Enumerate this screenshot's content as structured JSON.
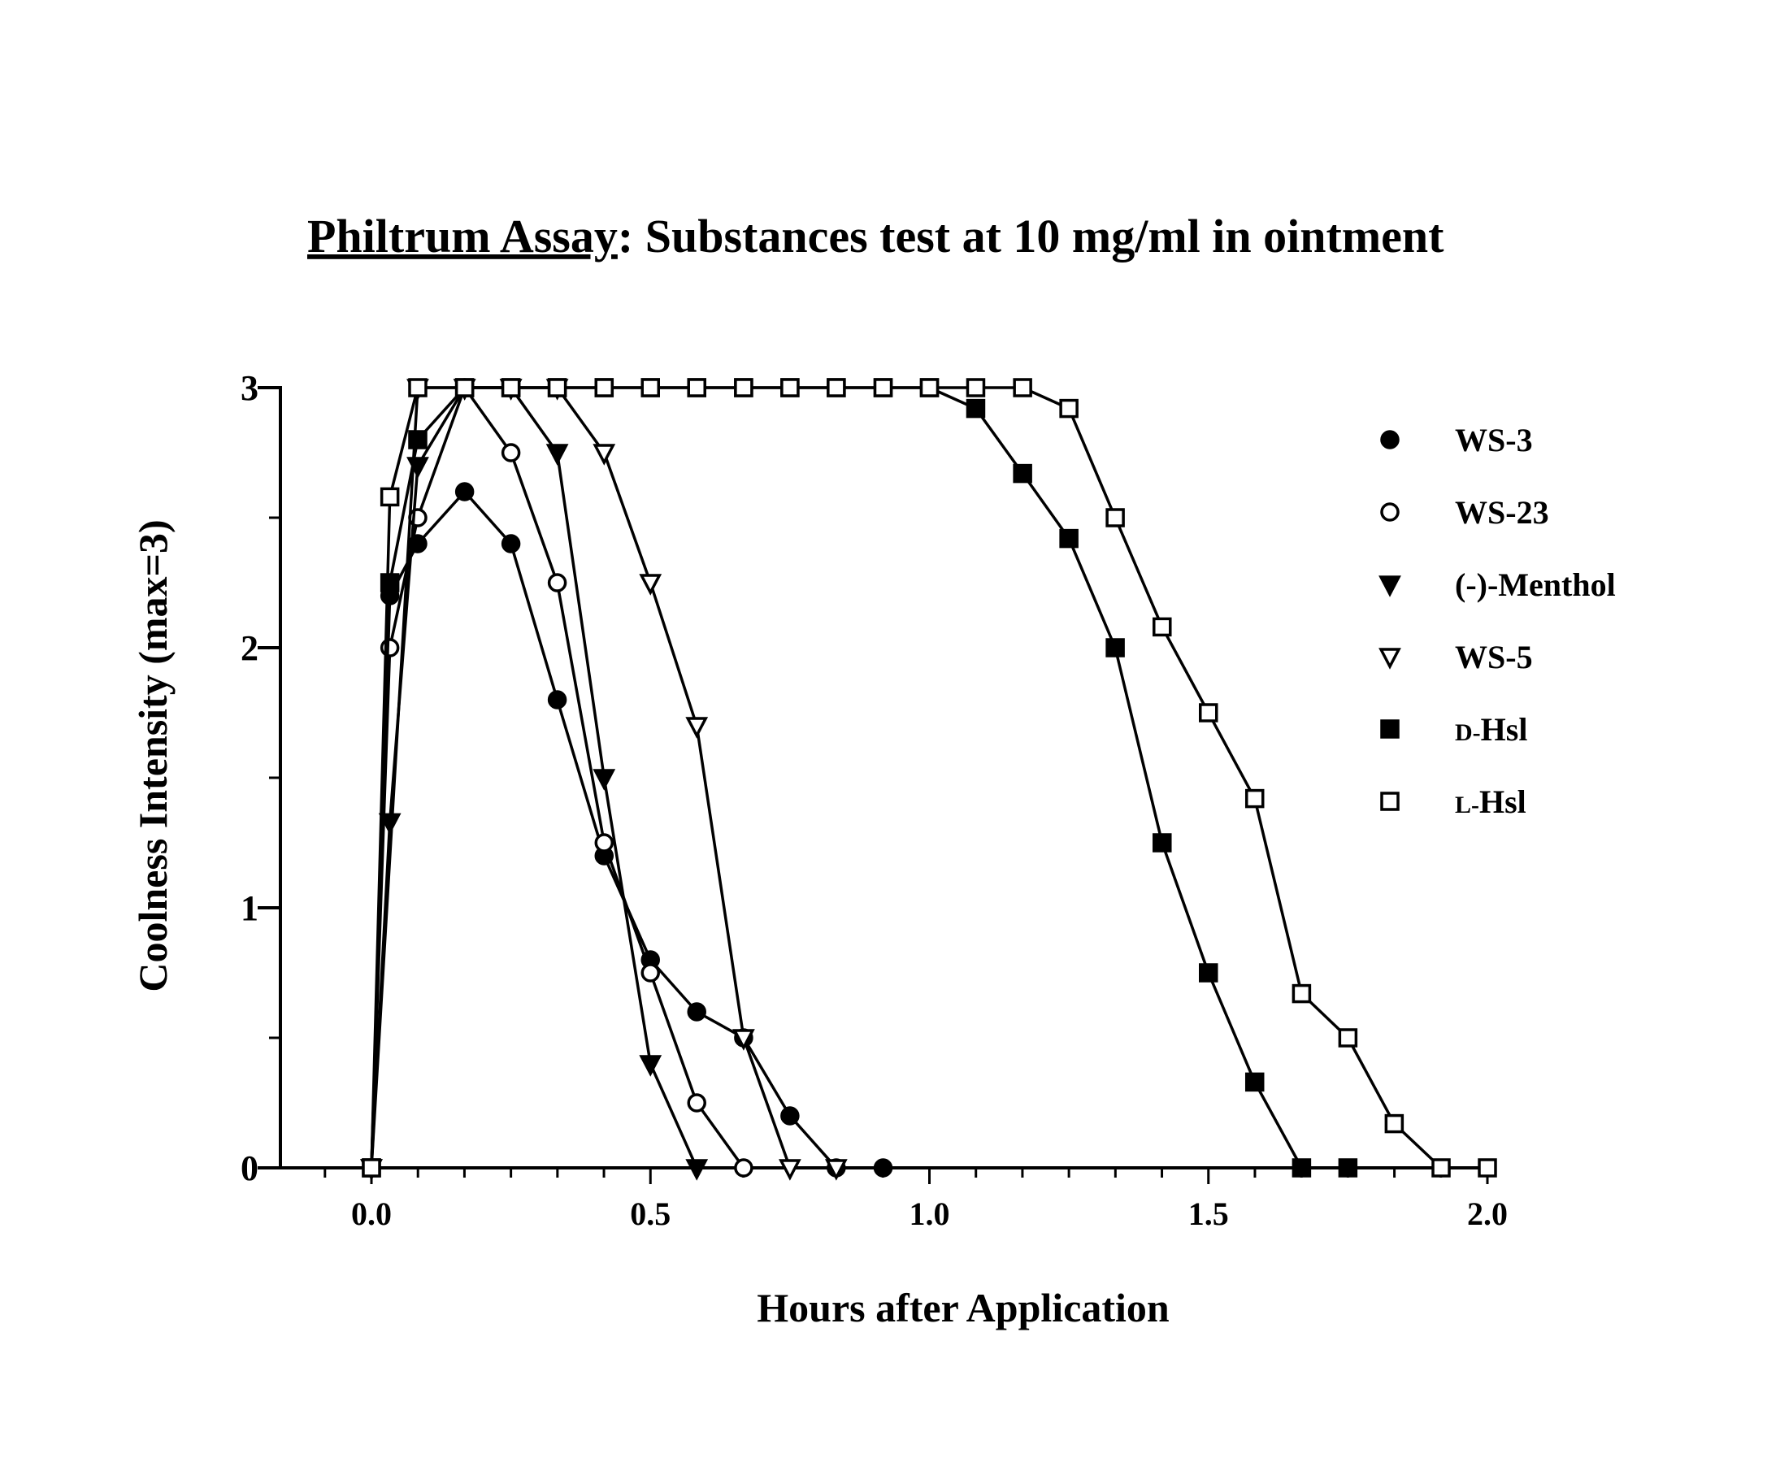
{
  "chart_data": {
    "type": "line",
    "title": {
      "underlined": "Philtrum Assay",
      "rest": ":  Substances test at 10 mg/ml in ointment"
    },
    "xlabel": "Hours after Application",
    "ylabel": "Coolness Intensity (max=3)",
    "xlim": [
      -0.17,
      2.0
    ],
    "ylim": [
      0,
      3
    ],
    "xticks": [
      0.0,
      0.5,
      1.0,
      1.5,
      2.0
    ],
    "xtick_labels": [
      "0.0",
      "0.5",
      "1.0",
      "1.5",
      "2.0"
    ],
    "yticks": [
      0,
      1,
      2,
      3
    ],
    "ytick_labels": [
      "0",
      "1",
      "2",
      "3"
    ],
    "legend_position": "top-right",
    "series": [
      {
        "name": "WS-3",
        "marker": "circle-filled",
        "x": [
          0.0,
          0.033,
          0.083,
          0.167,
          0.25,
          0.333,
          0.417,
          0.5,
          0.583,
          0.667,
          0.75,
          0.833,
          0.917
        ],
        "y": [
          0,
          2.2,
          2.4,
          2.6,
          2.4,
          1.8,
          1.2,
          0.8,
          0.6,
          0.5,
          0.2,
          0,
          0
        ]
      },
      {
        "name": "WS-23",
        "marker": "circle-open",
        "x": [
          0.0,
          0.033,
          0.083,
          0.167,
          0.25,
          0.333,
          0.417,
          0.5,
          0.583,
          0.667
        ],
        "y": [
          0,
          2.0,
          2.5,
          3.0,
          2.75,
          2.25,
          1.25,
          0.75,
          0.25,
          0
        ]
      },
      {
        "name": "(-)-Menthol",
        "marker": "triangle-down-filled",
        "x": [
          0.0,
          0.033,
          0.083,
          0.167,
          0.25,
          0.333,
          0.417,
          0.5,
          0.583
        ],
        "y": [
          0,
          1.33,
          2.7,
          3.0,
          3.0,
          2.75,
          1.5,
          0.4,
          0
        ]
      },
      {
        "name": "WS-5",
        "marker": "triangle-down-open",
        "x": [
          0.0,
          0.083,
          0.167,
          0.25,
          0.333,
          0.417,
          0.5,
          0.583,
          0.667,
          0.75,
          0.833
        ],
        "y": [
          0,
          3.0,
          3.0,
          3.0,
          3.0,
          2.75,
          2.25,
          1.7,
          0.5,
          0,
          0
        ]
      },
      {
        "name": "D-Hsl",
        "name_display": "d-Hsl",
        "marker": "square-filled",
        "x": [
          0.0,
          0.033,
          0.083,
          0.167,
          0.25,
          0.333,
          0.417,
          0.5,
          0.583,
          0.667,
          0.75,
          0.833,
          0.917,
          1.0,
          1.083,
          1.167,
          1.25,
          1.333,
          1.417,
          1.5,
          1.583,
          1.667,
          1.75
        ],
        "y": [
          0,
          2.25,
          2.8,
          3.0,
          3.0,
          3.0,
          3.0,
          3.0,
          3.0,
          3.0,
          3.0,
          3.0,
          3.0,
          3.0,
          2.92,
          2.67,
          2.42,
          2.0,
          1.25,
          0.75,
          0.33,
          0,
          0
        ]
      },
      {
        "name": "L-Hsl",
        "name_display": "l-Hsl",
        "marker": "square-open",
        "x": [
          0.0,
          0.033,
          0.083,
          0.167,
          0.25,
          0.333,
          0.417,
          0.5,
          0.583,
          0.667,
          0.75,
          0.833,
          0.917,
          1.0,
          1.083,
          1.167,
          1.25,
          1.333,
          1.417,
          1.5,
          1.583,
          1.667,
          1.75,
          1.833,
          1.917,
          2.0
        ],
        "y": [
          0,
          2.58,
          3.0,
          3.0,
          3.0,
          3.0,
          3.0,
          3.0,
          3.0,
          3.0,
          3.0,
          3.0,
          3.0,
          3.0,
          3.0,
          3.0,
          2.92,
          2.5,
          2.08,
          1.75,
          1.42,
          0.67,
          0.5,
          0.17,
          0,
          0
        ]
      }
    ]
  }
}
